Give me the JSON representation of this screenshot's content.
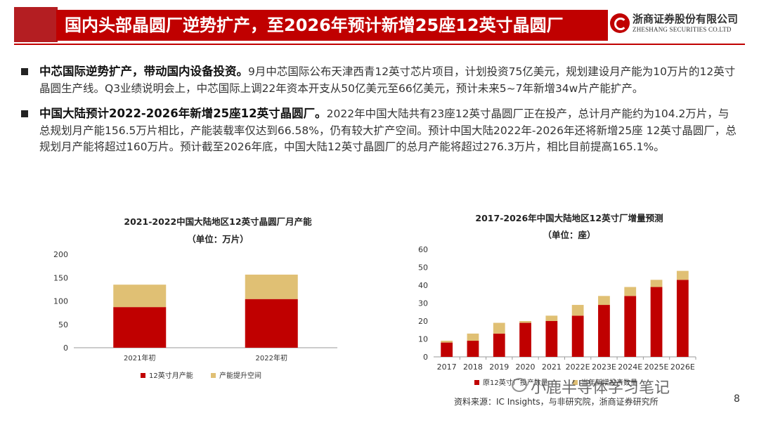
{
  "header": {
    "title": "国内头部晶圆厂逆势扩产，至2026年预计新增25座12英寸晶圆厂",
    "logo_cn": "浙商证券股份有限公司",
    "logo_en": "ZHESHANG SECURITIES CO.LTD"
  },
  "bullets": [
    {
      "head": "中芯国际逆势扩产，带动国内设备投资。",
      "body": "9月中芯国际公布天津西青12英寸芯片项目，计划投资75亿美元，规划建设月产能为10万片的12英寸晶圆生产线。Q3业绩说明会上，中芯国际上调22年资本开支从50亿美元至66亿美元，预计未来5~7年新增34w片产能扩产。"
    },
    {
      "head": "中国大陆预计2022-2026年新增25座12英寸晶圆厂。",
      "body": "2022年中国大陆共有23座12英寸晶圆厂正在投产，总计月产能约为104.2万片，与总规划月产能156.5万片相比，产能装载率仅达到66.58%，仍有较大扩产空间。预计中国大陆2022年-2026年还将新增25座 12英寸晶圆厂，总规划月产能将超过160万片。预计截至2026年底，中国大陆12英寸晶圆厂的总月产能将超过276.3万片，相比目前提高165.1%。"
    }
  ],
  "colors": {
    "brand_red": "#c00000",
    "bar_red": "#c00000",
    "bar_tan": "#e0c074"
  },
  "chart_data": [
    {
      "type": "bar",
      "stacked": true,
      "title": "2021-2022中国大陆地区12英寸晶圆厂月产能",
      "subtitle": "（单位：万片）",
      "categories": [
        "2021年初",
        "2022年初"
      ],
      "series": [
        {
          "name": "12英寸月产能",
          "values": [
            87,
            104.2
          ]
        },
        {
          "name": "产能提升空间",
          "values": [
            48,
            52.3
          ]
        }
      ],
      "ylim": [
        0,
        200
      ],
      "yticks": [
        0,
        50,
        100,
        150,
        200
      ],
      "legend": "bottom",
      "grid": false
    },
    {
      "type": "bar",
      "stacked": true,
      "title": "2017-2026年中国大陆地区12英寸厂增量预测",
      "subtitle": "（单位：座）",
      "categories": [
        "2017",
        "2018",
        "2019",
        "2020",
        "2021",
        "2022E",
        "2023E",
        "2024E",
        "2025E",
        "2026E"
      ],
      "series": [
        {
          "name": "原12英寸厂投产数量",
          "values": [
            8,
            9,
            13,
            19,
            20,
            23,
            29,
            34,
            39,
            43
          ]
        },
        {
          "name": "当年新增投产数量",
          "values": [
            1,
            4,
            6,
            1,
            3,
            6,
            5,
            5,
            4,
            5
          ]
        }
      ],
      "ylim": [
        0,
        60
      ],
      "yticks": [
        0,
        10,
        20,
        30,
        40,
        50,
        60
      ],
      "legend": "bottom",
      "grid": false
    }
  ],
  "footer": {
    "source": "资料来源：IC Insights，与非研究院，浙商证券研究所",
    "watermark": "小鹿半导体学习笔记",
    "page_number": "8"
  }
}
